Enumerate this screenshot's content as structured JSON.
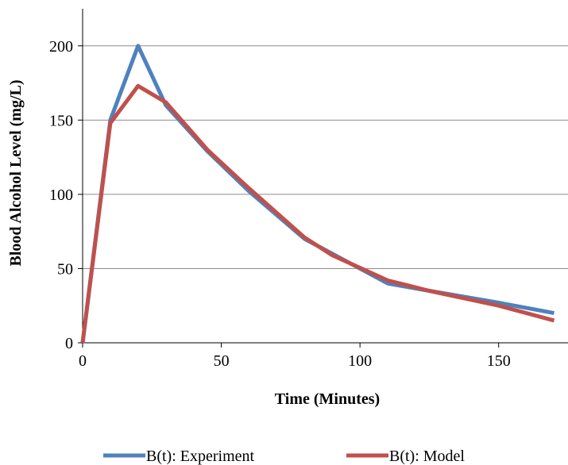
{
  "chart_data": {
    "type": "line",
    "xlabel": "Time (Minutes)",
    "ylabel": "Blood Alcohol Level (mg/L)",
    "xlim": [
      0,
      175
    ],
    "ylim": [
      0,
      225
    ],
    "x_ticks": [
      0,
      50,
      100,
      150
    ],
    "y_ticks": [
      0,
      50,
      100,
      150,
      200
    ],
    "grid": "horizontal",
    "legend_position": "bottom",
    "series": [
      {
        "name": "B(t): Experiment",
        "color": "#4f81bd",
        "x": [
          0,
          10,
          20,
          30,
          45,
          60,
          80,
          90,
          110,
          125,
          150,
          170
        ],
        "y": [
          0,
          150,
          200,
          160,
          129,
          102,
          70,
          60,
          40,
          35,
          27,
          20
        ]
      },
      {
        "name": "B(t): Model",
        "color": "#c0504d",
        "x": [
          0,
          10,
          20,
          30,
          45,
          60,
          80,
          90,
          110,
          125,
          150,
          170
        ],
        "y": [
          0,
          148,
          173,
          162,
          130,
          104,
          71,
          59,
          42,
          35,
          25,
          15
        ]
      }
    ]
  }
}
